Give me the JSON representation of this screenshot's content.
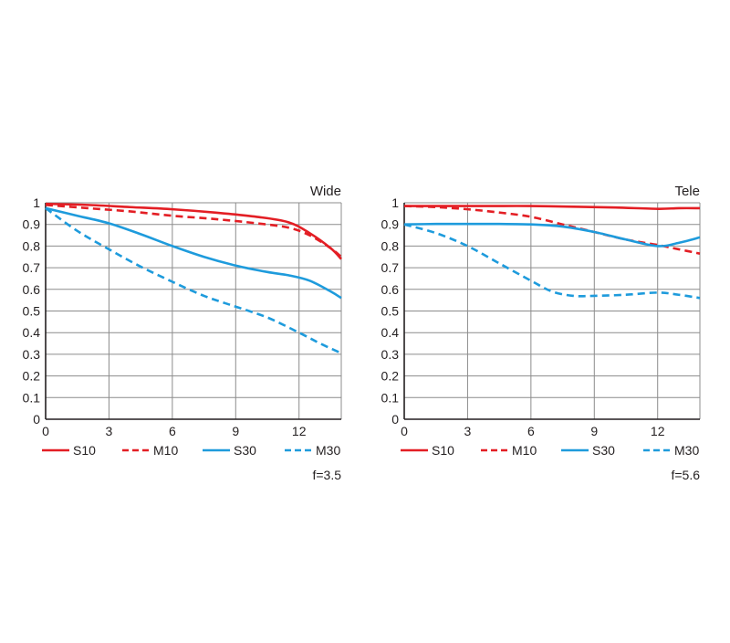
{
  "colors": {
    "red": "#e31e24",
    "blue": "#1e9bdc",
    "grid": "#8c8c8c",
    "axis": "#231f20"
  },
  "chart_data": [
    {
      "type": "line",
      "title": "Wide",
      "aperture": "f=3.5",
      "xlabel": "",
      "ylabel": "",
      "xlim": [
        0,
        14
      ],
      "ylim": [
        0,
        1
      ],
      "x_ticks": [
        "0",
        "3",
        "6",
        "9",
        "12"
      ],
      "y_ticks": [
        "0",
        "0.1",
        "0.2",
        "0.3",
        "0.4",
        "0.5",
        "0.6",
        "0.7",
        "0.8",
        "0.9",
        "1"
      ],
      "grid": true,
      "legend_position": "bottom",
      "series": [
        {
          "name": "S10",
          "color": "#e31e24",
          "style": "solid",
          "x": [
            0,
            2,
            4,
            6,
            8,
            10,
            11.5,
            12.5,
            13.5,
            14
          ],
          "y": [
            0.995,
            0.99,
            0.98,
            0.97,
            0.955,
            0.935,
            0.91,
            0.86,
            0.79,
            0.74
          ]
        },
        {
          "name": "M10",
          "color": "#e31e24",
          "style": "dashed",
          "x": [
            0,
            2,
            4,
            6,
            8,
            10,
            11.5,
            12.5,
            13.5,
            14
          ],
          "y": [
            0.99,
            0.975,
            0.96,
            0.94,
            0.925,
            0.905,
            0.885,
            0.85,
            0.79,
            0.75
          ]
        },
        {
          "name": "S30",
          "color": "#1e9bdc",
          "style": "solid",
          "x": [
            0,
            1.5,
            3,
            4.5,
            6,
            7.5,
            9,
            10.5,
            11.5,
            12.5,
            13.5,
            14
          ],
          "y": [
            0.975,
            0.94,
            0.905,
            0.855,
            0.8,
            0.75,
            0.71,
            0.68,
            0.665,
            0.64,
            0.59,
            0.56
          ]
        },
        {
          "name": "M30",
          "color": "#1e9bdc",
          "style": "dashed",
          "x": [
            0,
            1.5,
            3,
            4.5,
            6,
            7.5,
            9,
            10.5,
            12,
            13,
            14
          ],
          "y": [
            0.975,
            0.87,
            0.785,
            0.705,
            0.635,
            0.57,
            0.52,
            0.47,
            0.4,
            0.35,
            0.305
          ]
        }
      ]
    },
    {
      "type": "line",
      "title": "Tele",
      "aperture": "f=5.6",
      "xlabel": "",
      "ylabel": "",
      "xlim": [
        0,
        14
      ],
      "ylim": [
        0,
        1
      ],
      "x_ticks": [
        "0",
        "3",
        "6",
        "9",
        "12"
      ],
      "y_ticks": [
        "0",
        "0.1",
        "0.2",
        "0.3",
        "0.4",
        "0.5",
        "0.6",
        "0.7",
        "0.8",
        "0.9",
        "1"
      ],
      "grid": true,
      "legend_position": "bottom",
      "series": [
        {
          "name": "S10",
          "color": "#e31e24",
          "style": "solid",
          "x": [
            0,
            2,
            4,
            6,
            8,
            10,
            12,
            13,
            14
          ],
          "y": [
            0.985,
            0.985,
            0.985,
            0.985,
            0.982,
            0.978,
            0.972,
            0.975,
            0.975
          ]
        },
        {
          "name": "M10",
          "color": "#e31e24",
          "style": "dashed",
          "x": [
            0,
            1.5,
            3,
            4.5,
            6,
            7.5,
            9,
            10.5,
            12,
            13,
            14
          ],
          "y": [
            0.985,
            0.98,
            0.97,
            0.955,
            0.935,
            0.9,
            0.865,
            0.83,
            0.805,
            0.785,
            0.765
          ]
        },
        {
          "name": "S30",
          "color": "#1e9bdc",
          "style": "solid",
          "x": [
            0,
            1.5,
            3,
            4.5,
            6,
            7.5,
            9,
            10.5,
            12,
            13,
            14
          ],
          "y": [
            0.9,
            0.902,
            0.902,
            0.902,
            0.9,
            0.89,
            0.865,
            0.83,
            0.8,
            0.815,
            0.84
          ]
        },
        {
          "name": "M30",
          "color": "#1e9bdc",
          "style": "dashed",
          "x": [
            0,
            1.5,
            3,
            4.5,
            6,
            7,
            8,
            9,
            10.5,
            12,
            13,
            14
          ],
          "y": [
            0.9,
            0.86,
            0.8,
            0.72,
            0.64,
            0.59,
            0.57,
            0.57,
            0.575,
            0.585,
            0.575,
            0.56
          ]
        }
      ]
    }
  ]
}
